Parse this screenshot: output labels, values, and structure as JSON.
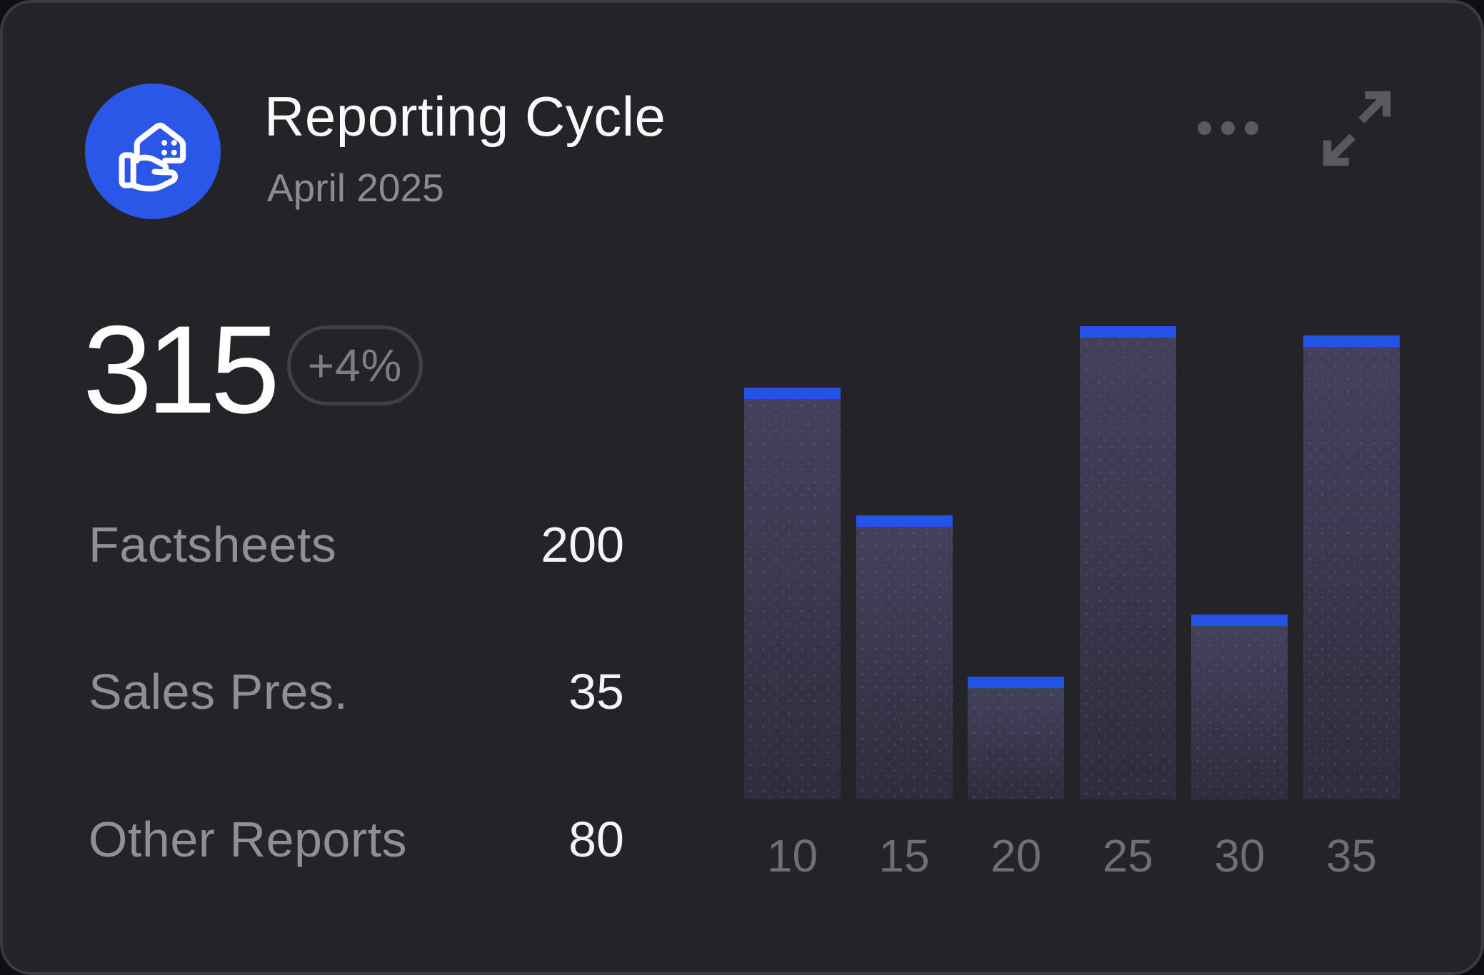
{
  "card": {
    "title": "Reporting Cycle",
    "subtitle": "April 2025",
    "icon": "hand-holding-house-icon",
    "colors": {
      "accent_blue": "#2a57e8",
      "card_background": "#232328",
      "card_border": "#3a3a40"
    }
  },
  "summary": {
    "total": "315",
    "delta_badge": "+4%"
  },
  "breakdown": [
    {
      "label": "Factsheets",
      "value": "200"
    },
    {
      "label": "Sales Pres.",
      "value": "35"
    },
    {
      "label": "Other Reports",
      "value": "80"
    }
  ],
  "chart_data": {
    "type": "bar",
    "categories": [
      "10",
      "15",
      "20",
      "25",
      "30",
      "35"
    ],
    "values": [
      87,
      60,
      26,
      100,
      39,
      98
    ],
    "values_note": "relative bar heights in % of tallest bar; chart has no y-axis or gridlines",
    "title": "",
    "xlabel": "",
    "ylabel": "",
    "grid": false,
    "legend": false,
    "bar_body_color": "#3c3c52",
    "bar_cap_color": "#2353e5",
    "axis_label_color": "#6e6e73"
  }
}
